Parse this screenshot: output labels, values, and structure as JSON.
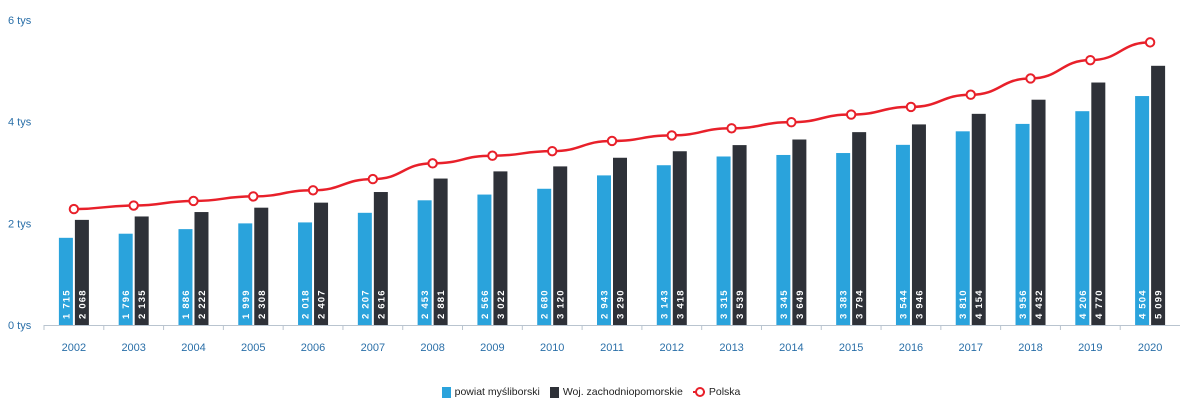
{
  "chart_data": {
    "type": "bar",
    "title": "",
    "xlabel": "",
    "ylabel": "",
    "y_ticks": [
      "0 tys",
      "2 tys",
      "4 tys",
      "6 tys"
    ],
    "y_tick_values": [
      0,
      2000,
      4000,
      6000
    ],
    "ylim": [
      0,
      6000
    ],
    "grid": false,
    "legend_placement": "bottom",
    "categories": [
      "2002",
      "2003",
      "2004",
      "2005",
      "2006",
      "2007",
      "2008",
      "2009",
      "2010",
      "2011",
      "2012",
      "2013",
      "2014",
      "2015",
      "2016",
      "2017",
      "2018",
      "2019",
      "2020"
    ],
    "series": [
      {
        "name": "powiat myśliborski",
        "type": "bar",
        "color": "#2aa3dc",
        "values": [
          1715,
          1796,
          1886,
          1999,
          2018,
          2207,
          2453,
          2566,
          2680,
          2943,
          3143,
          3315,
          3345,
          3383,
          3544,
          3810,
          3956,
          4206,
          4504
        ],
        "labels": [
          "1 715",
          "1 796",
          "1 886",
          "1 999",
          "2 018",
          "2 207",
          "2 453",
          "2 566",
          "2 680",
          "2 943",
          "3 143",
          "3 315",
          "3 345",
          "3 383",
          "3 544",
          "3 810",
          "3 956",
          "4 206",
          "4 504"
        ]
      },
      {
        "name": "Woj. zachodniopomorskie",
        "type": "bar",
        "color": "#2e3138",
        "values": [
          2068,
          2135,
          2222,
          2308,
          2407,
          2616,
          2881,
          3022,
          3120,
          3290,
          3418,
          3539,
          3649,
          3794,
          3946,
          4154,
          4432,
          4770,
          5099
        ],
        "labels": [
          "2 068",
          "2 135",
          "2 222",
          "2 308",
          "2 407",
          "2 616",
          "2 881",
          "3 022",
          "3 120",
          "3 290",
          "3 418",
          "3 539",
          "3 649",
          "3 794",
          "3 946",
          "4 154",
          "4 432",
          "4 770",
          "5 099"
        ]
      },
      {
        "name": "Polska",
        "type": "line",
        "color": "#e8202a",
        "values": [
          2280,
          2350,
          2440,
          2530,
          2650,
          2870,
          3180,
          3330,
          3420,
          3620,
          3730,
          3870,
          3990,
          4140,
          4290,
          4530,
          4850,
          5210,
          5560
        ]
      }
    ]
  }
}
